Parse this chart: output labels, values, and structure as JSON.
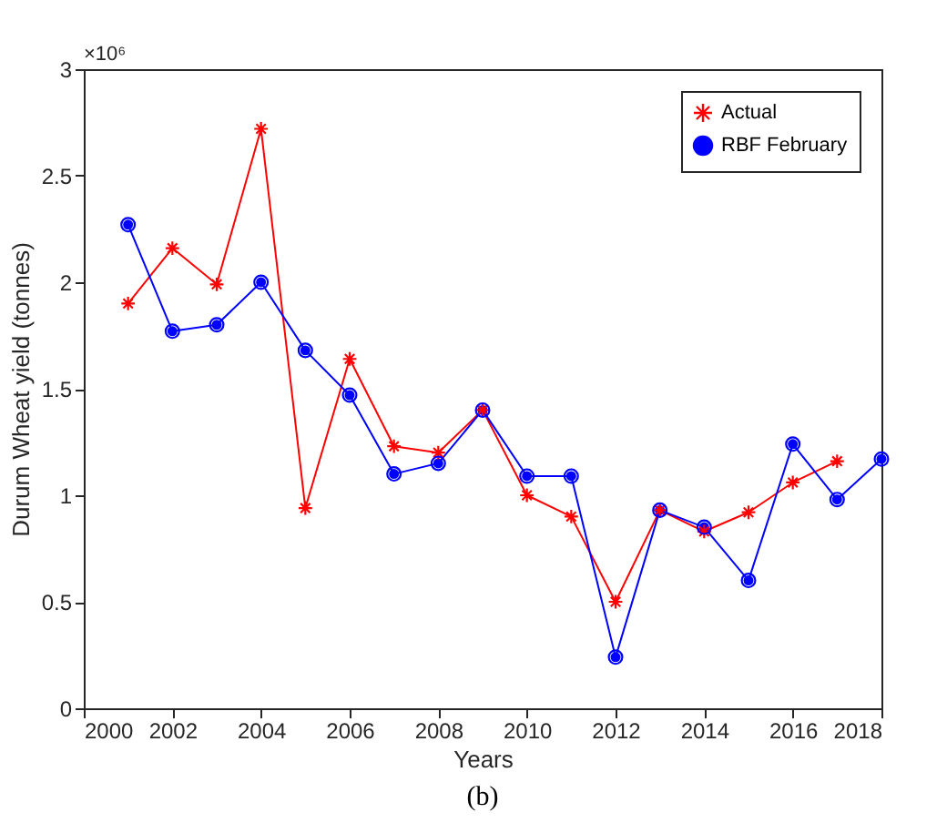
{
  "chart_data": {
    "type": "line",
    "xlabel": "Years",
    "ylabel": "Durum Wheat yield (tonnes)",
    "x": [
      2001,
      2002,
      2003,
      2004,
      2005,
      2006,
      2007,
      2008,
      2009,
      2010,
      2011,
      2012,
      2013,
      2014,
      2015,
      2016,
      2017,
      2018
    ],
    "series": [
      {
        "name": "Actual",
        "color": "#ff0000",
        "marker": "cross",
        "values": [
          1.9,
          2.16,
          1.99,
          2.72,
          0.94,
          1.64,
          1.23,
          1.2,
          1.4,
          1.0,
          0.9,
          0.5,
          0.93,
          0.83,
          0.92,
          1.06,
          1.16,
          null
        ]
      },
      {
        "name": "RBF February",
        "color": "#0000ff",
        "marker": "circle",
        "values": [
          2.27,
          1.77,
          1.8,
          2.0,
          1.68,
          1.47,
          1.1,
          1.15,
          1.4,
          1.09,
          1.09,
          0.24,
          0.93,
          0.85,
          0.6,
          1.24,
          0.98,
          1.17
        ]
      }
    ],
    "xlim": [
      2000,
      2018
    ],
    "xticks": [
      2000,
      2002,
      2004,
      2006,
      2008,
      2010,
      2012,
      2014,
      2016,
      2018
    ],
    "ylim": [
      0,
      3
    ],
    "yticks": [
      0,
      0.5,
      1,
      1.5,
      2,
      2.5,
      3
    ],
    "legend": "top right",
    "grid": false,
    "line_style": "solid",
    "annotations": [
      "×10⁶",
      "(b)"
    ]
  }
}
